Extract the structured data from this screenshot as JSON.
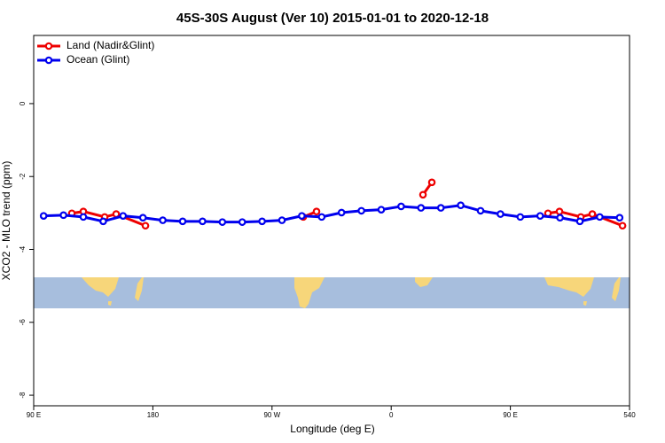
{
  "chart_data": {
    "type": "line",
    "title": "45S-30S August (Ver 10)   2015-01-01 to 2020-12-18",
    "x_label": "Longitude (deg E)",
    "y_label": "XCO2 - MLO trend (ppm)",
    "xlim": [
      90,
      540
    ],
    "ylim": [
      -8.29,
      1.87
    ],
    "xticks": [
      {
        "value": 90,
        "label": "90 E"
      },
      180,
      {
        "value": 270,
        "label": "90 W"
      },
      {
        "value": 360,
        "label": "0"
      },
      {
        "value": 450,
        "label": "90 E"
      },
      540
    ],
    "yticks": [
      0,
      -2,
      -4,
      -6,
      -8
    ],
    "legend": "top-left",
    "series": [
      {
        "name": "Land (Nadir&Glint)",
        "color": "#ee0000",
        "x": [
          118.8,
          127.5,
          143.6,
          152.3,
          174.4,
          null,
          293.6,
          303.6,
          null,
          384,
          390.7,
          null,
          478.4,
          487.1,
          503.2,
          511.9,
          534.7
        ],
        "values": [
          -3.01,
          -2.96,
          -3.11,
          -3.03,
          -3.35,
          null,
          -3.11,
          -2.96,
          null,
          -2.5,
          -2.16,
          null,
          -3.01,
          -2.96,
          -3.11,
          -3.03,
          -3.35
        ]
      },
      {
        "name": "Ocean (Glint)",
        "color": "#0000ee",
        "x": [
          97.5,
          112.5,
          127.5,
          142.5,
          157.5,
          172.5,
          187.5,
          202.5,
          217.5,
          232.5,
          247.5,
          262.5,
          277.5,
          292.5,
          307.5,
          322.5,
          337.5,
          352.5,
          367.5,
          382.5,
          397.5,
          412.5,
          427.5,
          442.5,
          457.5,
          472.5,
          487.5,
          502.5,
          517.5,
          532.5
        ],
        "values": [
          -3.08,
          -3.06,
          -3.11,
          -3.23,
          -3.08,
          -3.13,
          -3.2,
          -3.23,
          -3.23,
          -3.25,
          -3.25,
          -3.23,
          -3.2,
          -3.08,
          -3.11,
          -2.99,
          -2.94,
          -2.91,
          -2.82,
          -2.86,
          -2.86,
          -2.79,
          -2.94,
          -3.03,
          -3.11,
          -3.08,
          -3.13,
          -3.23,
          -3.11,
          -3.13
        ]
      }
    ]
  }
}
